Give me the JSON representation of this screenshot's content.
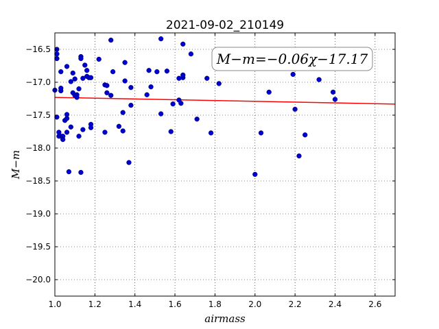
{
  "chart_data": {
    "type": "scatter",
    "title": "2021-09-02_210149",
    "xlabel": "airmass",
    "ylabel": "M−m",
    "xlim": [
      1.0,
      2.7
    ],
    "ylim": [
      -16.25,
      -20.25
    ],
    "y_inverted": true,
    "grid": true,
    "xticks": [
      1.0,
      1.2,
      1.4,
      1.6,
      1.8,
      2.0,
      2.2,
      2.4,
      2.6
    ],
    "xtick_labels": [
      "1.0",
      "1.2",
      "1.4",
      "1.6",
      "1.8",
      "2.0",
      "2.2",
      "2.4",
      "2.6"
    ],
    "yticks": [
      -16.5,
      -17.0,
      -17.5,
      -18.0,
      -18.5,
      -19.0,
      -19.5,
      -20.0
    ],
    "ytick_labels": [
      "−16.5",
      "−17.0",
      "−17.5",
      "−18.0",
      "−18.5",
      "−19.0",
      "−19.5",
      "−20.0"
    ],
    "annotation": "M−m=−0.06χ−17.17",
    "fit": {
      "slope": -0.06,
      "intercept": -17.17,
      "color": "#ff0000"
    },
    "point_color": "#0000cc",
    "points": [
      [
        1.0,
        -17.12
      ],
      [
        1.01,
        -16.5
      ],
      [
        1.01,
        -16.57
      ],
      [
        1.01,
        -16.64
      ],
      [
        1.01,
        -17.53
      ],
      [
        1.02,
        -17.82
      ],
      [
        1.02,
        -17.76
      ],
      [
        1.03,
        -16.84
      ],
      [
        1.03,
        -17.13
      ],
      [
        1.03,
        -17.09
      ],
      [
        1.03,
        -17.82
      ],
      [
        1.04,
        -17.82
      ],
      [
        1.04,
        -17.87
      ],
      [
        1.05,
        -17.58
      ],
      [
        1.06,
        -17.55
      ],
      [
        1.06,
        -17.49
      ],
      [
        1.06,
        -17.76
      ],
      [
        1.06,
        -16.76
      ],
      [
        1.07,
        -18.36
      ],
      [
        1.08,
        -16.99
      ],
      [
        1.08,
        -17.68
      ],
      [
        1.09,
        -16.86
      ],
      [
        1.09,
        -17.16
      ],
      [
        1.1,
        -17.2
      ],
      [
        1.1,
        -16.95
      ],
      [
        1.11,
        -17.19
      ],
      [
        1.11,
        -17.23
      ],
      [
        1.12,
        -17.1
      ],
      [
        1.12,
        -17.82
      ],
      [
        1.13,
        -18.37
      ],
      [
        1.13,
        -16.61
      ],
      [
        1.13,
        -16.64
      ],
      [
        1.14,
        -16.94
      ],
      [
        1.14,
        -17.72
      ],
      [
        1.15,
        -16.74
      ],
      [
        1.16,
        -16.91
      ],
      [
        1.16,
        -16.82
      ],
      [
        1.17,
        -16.93
      ],
      [
        1.18,
        -17.64
      ],
      [
        1.18,
        -17.69
      ],
      [
        1.18,
        -16.93
      ],
      [
        1.22,
        -16.65
      ],
      [
        1.25,
        -17.76
      ],
      [
        1.25,
        -17.04
      ],
      [
        1.26,
        -17.16
      ],
      [
        1.26,
        -17.05
      ],
      [
        1.28,
        -17.2
      ],
      [
        1.28,
        -16.36
      ],
      [
        1.29,
        -16.84
      ],
      [
        1.32,
        -17.67
      ],
      [
        1.34,
        -17.46
      ],
      [
        1.34,
        -17.74
      ],
      [
        1.35,
        -16.7
      ],
      [
        1.35,
        -16.98
      ],
      [
        1.37,
        -18.22
      ],
      [
        1.38,
        -17.35
      ],
      [
        1.38,
        -17.08
      ],
      [
        1.46,
        -17.19
      ],
      [
        1.47,
        -16.82
      ],
      [
        1.48,
        -17.07
      ],
      [
        1.51,
        -16.84
      ],
      [
        1.53,
        -16.34
      ],
      [
        1.53,
        -17.48
      ],
      [
        1.56,
        -16.83
      ],
      [
        1.58,
        -17.75
      ],
      [
        1.59,
        -17.33
      ],
      [
        1.62,
        -16.94
      ],
      [
        1.62,
        -17.27
      ],
      [
        1.63,
        -17.32
      ],
      [
        1.64,
        -16.93
      ],
      [
        1.64,
        -16.89
      ],
      [
        1.64,
        -16.42
      ],
      [
        1.68,
        -16.57
      ],
      [
        1.71,
        -17.56
      ],
      [
        1.76,
        -16.94
      ],
      [
        1.78,
        -17.77
      ],
      [
        1.82,
        -17.02
      ],
      [
        2.0,
        -18.4
      ],
      [
        2.03,
        -17.77
      ],
      [
        2.07,
        -17.15
      ],
      [
        2.19,
        -16.88
      ],
      [
        2.2,
        -17.41
      ],
      [
        2.22,
        -18.12
      ],
      [
        2.25,
        -17.8
      ],
      [
        2.32,
        -16.96
      ],
      [
        2.39,
        -17.15
      ],
      [
        2.4,
        -17.26
      ]
    ]
  }
}
